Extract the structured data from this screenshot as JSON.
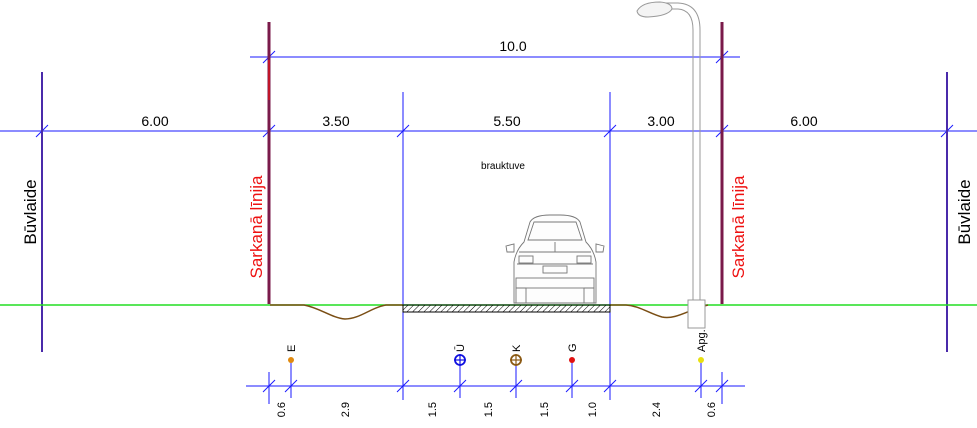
{
  "top_dimension": "10.0",
  "upper_dimensions": [
    "6.00",
    "3.50",
    "5.50",
    "3.00",
    "6.00"
  ],
  "road_label": "brauktuve",
  "building_line_label": "Būvlaide",
  "red_line_label": "Sarkanā līnija",
  "utilities": [
    {
      "label": "E",
      "color": "#e08a10",
      "symbol": "dot"
    },
    {
      "label": "Ū",
      "color": "#1010e0",
      "symbol": "circle-cross"
    },
    {
      "label": "K",
      "color": "#8b5a14",
      "symbol": "circle-cross"
    },
    {
      "label": "G",
      "color": "#e01010",
      "symbol": "dot"
    },
    {
      "label": "Apg.",
      "color": "#e8e010",
      "symbol": "dot"
    }
  ],
  "bottom_dimensions": [
    "0.6",
    "2.9",
    "1.5",
    "1.5",
    "1.5",
    "1.0",
    "2.4",
    "0.6"
  ],
  "colors": {
    "dimension_line": "#1a1aff",
    "ground_line": "#22dd22",
    "red_line": "#ee1111",
    "red_line_bar": "#7a1a4a",
    "ditch": "#7a4e14",
    "label_red": "#ee1111"
  },
  "icons": [
    "street-lamp-icon",
    "car-icon"
  ]
}
